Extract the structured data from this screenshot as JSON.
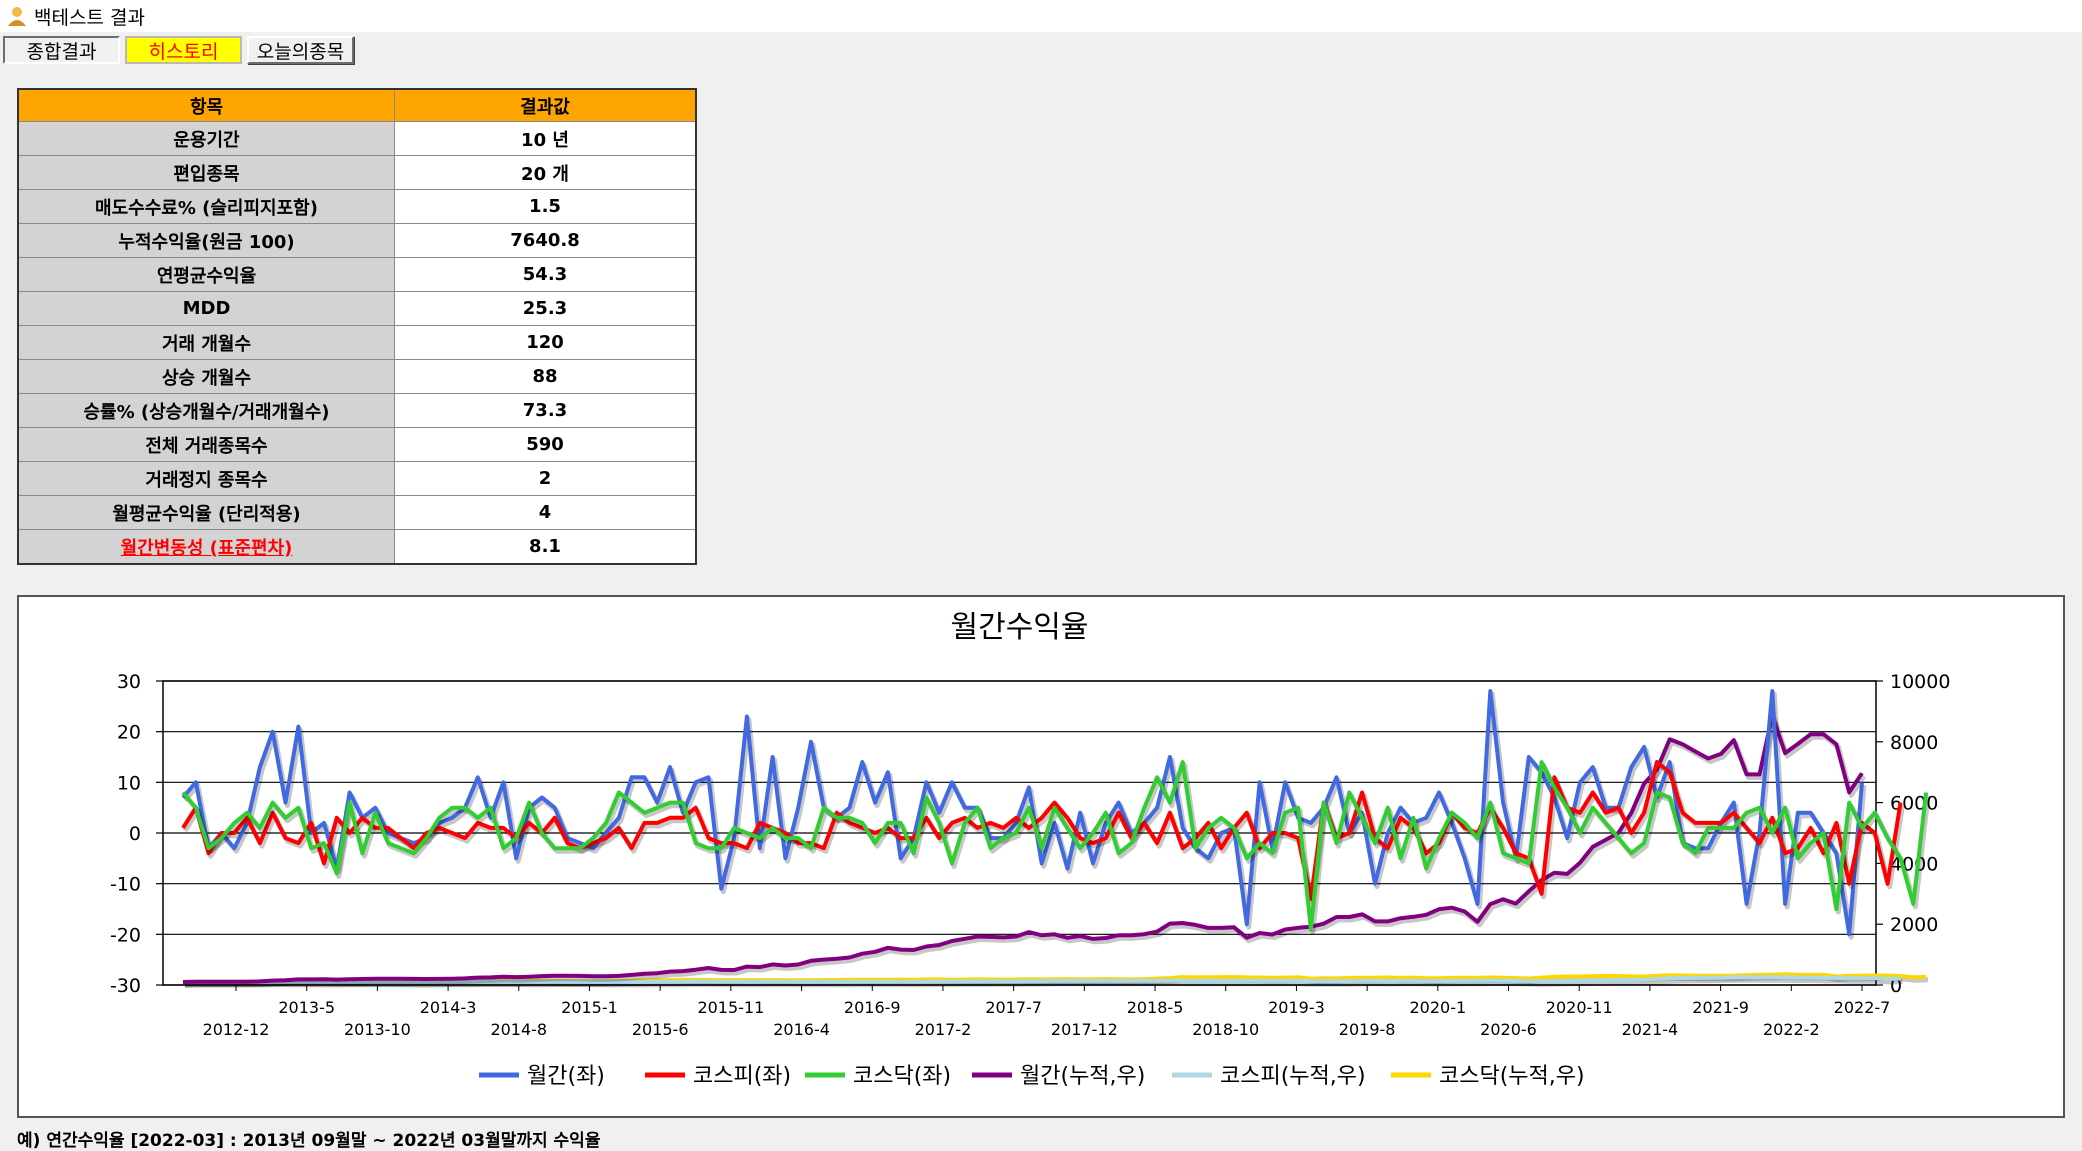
{
  "window": {
    "title": "백테스트 결과"
  },
  "tabs": [
    {
      "label": "종합결과"
    },
    {
      "label": "히스토리"
    },
    {
      "label": "오늘의종목"
    }
  ],
  "table": {
    "headers": [
      "항목",
      "결과값"
    ],
    "rows": [
      {
        "key": "운용기간",
        "value": "10 년"
      },
      {
        "key": "편입종목",
        "value": "20 개"
      },
      {
        "key": "매도수수료% (슬리피지포함)",
        "value": "1.5"
      },
      {
        "key": "누적수익율(원금 100)",
        "value": "7640.8"
      },
      {
        "key": "연평균수익율",
        "value": "54.3"
      },
      {
        "key": "MDD",
        "value": "25.3"
      },
      {
        "key": "거래 개월수",
        "value": "120"
      },
      {
        "key": "상승 개월수",
        "value": "88"
      },
      {
        "key": "승률% (상승개월수/거래개월수)",
        "value": "73.3"
      },
      {
        "key": "전체 거래종목수",
        "value": "590"
      },
      {
        "key": "거래정지 종목수",
        "value": "2"
      },
      {
        "key": "월평균수익율 (단리적용)",
        "value": "4"
      },
      {
        "key": "월간변동성 (표준편차)",
        "value": "8.1"
      }
    ]
  },
  "chart_data": {
    "type": "line",
    "title": "월간수익율",
    "y_left": {
      "ticks": [
        "30",
        "20",
        "10",
        "0",
        "-10",
        "-20",
        "-30"
      ],
      "range": [
        -30,
        30
      ]
    },
    "y_right": {
      "ticks": [
        "10000",
        "8000",
        "6000",
        "4000",
        "2000",
        "0"
      ],
      "range": [
        0,
        10000
      ]
    },
    "x_labels_top": [
      "2013-5",
      "2014-3",
      "2015-1",
      "2015-11",
      "2016-9",
      "2017-7",
      "2018-5",
      "2019-3",
      "2020-1",
      "2020-11",
      "2021-9",
      "2022-7"
    ],
    "x_labels_bottom": [
      "2012-12",
      "2013-10",
      "2014-8",
      "2015-6",
      "2016-4",
      "2017-2",
      "2017-12",
      "2018-10",
      "2019-8",
      "2020-6",
      "2021-4",
      "2022-2"
    ],
    "legend": [
      "월간(좌)",
      "코스피(좌)",
      "코스닥(좌)",
      "월간(누적,우)",
      "코스피(누적,우)",
      "코스닥(누적,우)"
    ],
    "colors": [
      "#4169e1",
      "#ff0000",
      "#32cd32",
      "#800080",
      "#add8e6",
      "#ffd700"
    ],
    "series": [
      {
        "name": "월간(좌)",
        "axis": "left",
        "values": [
          7,
          10,
          -3,
          0,
          -3,
          2,
          13,
          20,
          6,
          21,
          0,
          2,
          -7,
          8,
          3,
          5,
          0,
          -1,
          -2,
          -1,
          2,
          3,
          5,
          11,
          3,
          10,
          -5,
          5,
          7,
          5,
          -1,
          -2,
          -3,
          0,
          3,
          11,
          11,
          6,
          13,
          4,
          10,
          11,
          -11,
          -1,
          23,
          -3,
          15,
          -5,
          5,
          18,
          5,
          3,
          5,
          14,
          6,
          12,
          -5,
          -1,
          10,
          4,
          10,
          5,
          5,
          -1,
          -1,
          2,
          9,
          -6,
          2,
          -7,
          4,
          -6,
          2,
          6,
          0,
          2,
          5,
          15,
          1,
          -3,
          -5,
          0,
          1,
          -18,
          10,
          -3,
          10,
          3,
          2,
          5,
          11,
          0,
          4,
          -10,
          0,
          5,
          2,
          3,
          8,
          2,
          -5,
          -14,
          28,
          6,
          -5,
          15,
          12,
          7,
          -1,
          10,
          13,
          5,
          5,
          13,
          17,
          7,
          14,
          -2,
          -3,
          -3,
          2,
          6,
          -14,
          0,
          28,
          -14,
          4,
          4,
          0,
          -4,
          -20,
          10
        ]
      },
      {
        "name": "코스피(좌)",
        "axis": "left",
        "values": [
          1,
          5,
          -4,
          0,
          0,
          3,
          -2,
          4,
          -1,
          -2,
          2,
          -6,
          3,
          0,
          3,
          1,
          1,
          -1,
          -3,
          0,
          1,
          0,
          -1,
          2,
          1,
          1,
          -1,
          2,
          0,
          3,
          -2,
          -3,
          -2,
          -1,
          1,
          -3,
          2,
          2,
          3,
          3,
          5,
          -1,
          -2,
          -2,
          -3,
          2,
          1,
          0,
          -2,
          -2,
          -3,
          4,
          2,
          1,
          0,
          1,
          -1,
          -1,
          3,
          -1,
          2,
          3,
          1,
          2,
          1,
          3,
          1,
          3,
          6,
          3,
          -1,
          -2,
          -1,
          4,
          -1,
          2,
          -2,
          4,
          -3,
          -1,
          2,
          -3,
          1,
          4,
          -3,
          0,
          0,
          -1,
          -13,
          6,
          -1,
          0,
          8,
          -1,
          -3,
          3,
          1,
          -4,
          -2,
          4,
          1,
          0,
          5,
          1,
          -4,
          -5,
          -12,
          11,
          5,
          4,
          8,
          4,
          5,
          0,
          4,
          14,
          12,
          4,
          2,
          2,
          2,
          4,
          1,
          -2,
          3,
          -4,
          -3,
          1,
          -4,
          2,
          -10,
          2,
          0,
          -10,
          6
        ]
      },
      {
        "name": "코스닥(좌)",
        "axis": "left",
        "values": [
          8,
          5,
          -3,
          -1,
          2,
          4,
          1,
          6,
          3,
          5,
          -3,
          -2,
          -8,
          6,
          -4,
          4,
          -2,
          -3,
          -4,
          -1,
          3,
          5,
          5,
          3,
          5,
          -3,
          -1,
          6,
          0,
          -3,
          -3,
          -3,
          -1,
          2,
          8,
          6,
          4,
          5,
          6,
          6,
          -2,
          -3,
          -3,
          1,
          0,
          -1,
          1,
          -1,
          -1,
          -3,
          5,
          3,
          3,
          2,
          -2,
          2,
          2,
          -4,
          7,
          2,
          -6,
          2,
          5,
          -3,
          -1,
          0,
          5,
          -3,
          5,
          1,
          -3,
          0,
          4,
          -4,
          -2,
          5,
          11,
          6,
          14,
          -3,
          1,
          3,
          1,
          -5,
          -2,
          -4,
          4,
          5,
          -19,
          6,
          -2,
          8,
          3,
          -2,
          5,
          -5,
          3,
          -7,
          -1,
          4,
          2,
          -1,
          6,
          -4,
          -5,
          -6,
          14,
          9,
          5,
          0,
          5,
          2,
          -1,
          -4,
          -2,
          8,
          7,
          -2,
          -4,
          1,
          1,
          1,
          4,
          5,
          0,
          5,
          -5,
          -2,
          0,
          -15,
          6,
          1,
          4,
          -1,
          -5,
          -14,
          8
        ]
      },
      {
        "name": "월간(누적,우)",
        "axis": "right",
        "values": [
          100,
          110,
          107,
          107,
          104,
          106,
          120,
          144,
          153,
          185,
          185,
          189,
          176,
          190,
          196,
          206,
          206,
          204,
          200,
          198,
          202,
          208,
          218,
          242,
          249,
          274,
          260,
          273,
          292,
          307,
          304,
          298,
          289,
          289,
          298,
          331,
          367,
          389,
          440,
          458,
          504,
          559,
          498,
          493,
          606,
          588,
          676,
          642,
          674,
          796,
          836,
          861,
          904,
          1031,
          1093,
          1224,
          1163,
          1151,
          1266,
          1317,
          1449,
          1521,
          1597,
          1581,
          1565,
          1596,
          1740,
          1635,
          1668,
          1551,
          1613,
          1516,
          1546,
          1639,
          1639,
          1672,
          1756,
          2019,
          2039,
          1978,
          1879,
          1879,
          1898,
          1556,
          1712,
          1661,
          1827,
          1882,
          1919,
          2015,
          2237,
          2237,
          2326,
          2093,
          2093,
          2198,
          2242,
          2309,
          2494,
          2544,
          2417,
          2078,
          2660,
          2820,
          2679,
          3081,
          3451,
          3693,
          3656,
          4022,
          4545,
          4772,
          5011,
          5662,
          6625,
          7089,
          8081,
          7919,
          7682,
          7452,
          7601,
          8057,
          6929,
          6929,
          8869,
          7627,
          7932,
          8249,
          8249,
          7919,
          6335,
          6968
        ]
      },
      {
        "name": "코스피(누적,우)",
        "axis": "right",
        "values": [
          100,
          105,
          101,
          101,
          101,
          104,
          102,
          106,
          105,
          103,
          105,
          99,
          102,
          102,
          105,
          106,
          107,
          106,
          103,
          103,
          104,
          104,
          103,
          105,
          106,
          107,
          106,
          108,
          108,
          111,
          109,
          106,
          104,
          103,
          104,
          101,
          103,
          105,
          108,
          111,
          117,
          116,
          113,
          111,
          108,
          110,
          111,
          111,
          109,
          107,
          104,
          108,
          110,
          111,
          111,
          112,
          111,
          110,
          113,
          112,
          114,
          117,
          118,
          121,
          122,
          125,
          127,
          131,
          139,
          143,
          142,
          139,
          138,
          143,
          141,
          144,
          141,
          147,
          142,
          141,
          144,
          139,
          141,
          146,
          142,
          142,
          142,
          141,
          122,
          130,
          128,
          128,
          139,
          137,
          133,
          137,
          139,
          133,
          131,
          136,
          137,
          137,
          144,
          146,
          140,
          133,
          117,
          130,
          137,
          142,
          153,
          159,
          167,
          167,
          174,
          198,
          222,
          231,
          235,
          240,
          245,
          255,
          258,
          252,
          260,
          249,
          242,
          244,
          235,
          240,
          216,
          220,
          220,
          198,
          210
        ]
      },
      {
        "name": "코스닥(누적,우)",
        "axis": "right",
        "values": [
          100,
          108,
          105,
          104,
          106,
          110,
          111,
          118,
          121,
          127,
          123,
          121,
          111,
          118,
          113,
          118,
          116,
          112,
          108,
          107,
          110,
          116,
          121,
          125,
          131,
          127,
          126,
          133,
          133,
          129,
          125,
          121,
          120,
          122,
          132,
          140,
          146,
          153,
          162,
          172,
          169,
          164,
          159,
          160,
          160,
          159,
          160,
          159,
          157,
          153,
          160,
          165,
          170,
          173,
          170,
          173,
          177,
          170,
          182,
          185,
          174,
          178,
          187,
          181,
          180,
          180,
          189,
          183,
          192,
          194,
          188,
          188,
          196,
          188,
          184,
          193,
          214,
          227,
          259,
          251,
          253,
          261,
          264,
          251,
          246,
          236,
          245,
          257,
          208,
          221,
          216,
          234,
          241,
          236,
          248,
          235,
          242,
          225,
          223,
          232,
          237,
          234,
          248,
          238,
          226,
          213,
          243,
          265,
          278,
          278,
          292,
          298,
          295,
          283,
          277,
          299,
          320,
          313,
          301,
          304,
          307,
          310,
          322,
          339,
          339,
          356,
          338,
          331,
          331,
          281,
          298,
          301,
          313,
          310,
          295,
          254,
          274
        ]
      }
    ]
  },
  "note": "예) 연간수익율 [2022-03] : 2013년 09월말 ~ 2022년 03월말까지 수익율"
}
